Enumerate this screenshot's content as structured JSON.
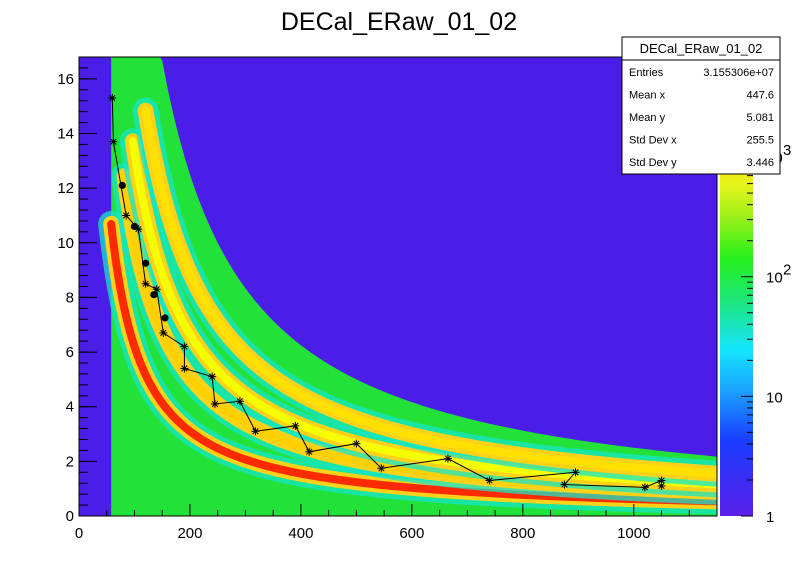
{
  "chart_data": {
    "type": "heatmap",
    "title": "DECal_ERaw_01_02",
    "xlim": [
      0,
      1150
    ],
    "ylim": [
      0,
      16.8
    ],
    "x_ticks": [
      0,
      200,
      400,
      600,
      800,
      1000
    ],
    "y_ticks": [
      0,
      2,
      4,
      6,
      8,
      10,
      12,
      14,
      16
    ],
    "z_scale": "log",
    "z_ticks": [
      {
        "value": 1,
        "label": "1"
      },
      {
        "value": 10,
        "label": "10"
      },
      {
        "value": 100,
        "label": "10",
        "sup": "2"
      },
      {
        "value": 1000,
        "label": "10",
        "sup": "3"
      }
    ],
    "colors": {
      "background": "#4a1ee6",
      "band_core": "#ff1500",
      "band_edge": "#ffc800",
      "band_outer": "#1be62a"
    },
    "stats_box": {
      "title": "DECal_ERaw_01_02",
      "rows": [
        {
          "label": "Entries",
          "value": "3.155306e+07"
        },
        {
          "label": "Mean x",
          "value": "447.6"
        },
        {
          "label": "Mean y",
          "value": "5.081"
        },
        {
          "label": "Std Dev x",
          "value": "255.5"
        },
        {
          "label": "Std Dev y",
          "value": "3.446"
        }
      ]
    },
    "bands": [
      {
        "name": "",
        "k": 620,
        "x_start": 58,
        "color": "#ff2a00"
      },
      {
        "name": "",
        "k": 1020,
        "x_start": 82,
        "color": "#ffd000"
      },
      {
        "name": "",
        "k": 1330,
        "x_start": 97,
        "color": "#f6ff00"
      },
      {
        "name": "",
        "k": 1780,
        "x_start": 120,
        "color": "#ffe000"
      }
    ],
    "series": [
      {
        "marker": "star",
        "points": [
          [
            60,
            15.3
          ],
          [
            62,
            13.7
          ],
          [
            85,
            11.0
          ],
          [
            107,
            10.5
          ],
          [
            120,
            8.5
          ],
          [
            140,
            8.3
          ],
          [
            152,
            6.7
          ],
          [
            190,
            6.2
          ],
          [
            190,
            5.4
          ],
          [
            240,
            5.1
          ],
          [
            245,
            4.1
          ],
          [
            290,
            4.2
          ],
          [
            318,
            3.1
          ],
          [
            390,
            3.3
          ],
          [
            415,
            2.35
          ],
          [
            500,
            2.65
          ],
          [
            545,
            1.75
          ],
          [
            665,
            2.1
          ],
          [
            740,
            1.3
          ],
          [
            895,
            1.6
          ],
          [
            875,
            1.15
          ],
          [
            1020,
            1.05
          ],
          [
            1050,
            1.3
          ],
          [
            1050,
            1.1
          ]
        ]
      },
      {
        "marker": "circle",
        "points": [
          [
            78,
            12.1
          ],
          [
            100,
            10.6
          ],
          [
            120,
            9.25
          ],
          [
            135,
            8.1
          ],
          [
            155,
            7.25
          ]
        ]
      }
    ]
  }
}
